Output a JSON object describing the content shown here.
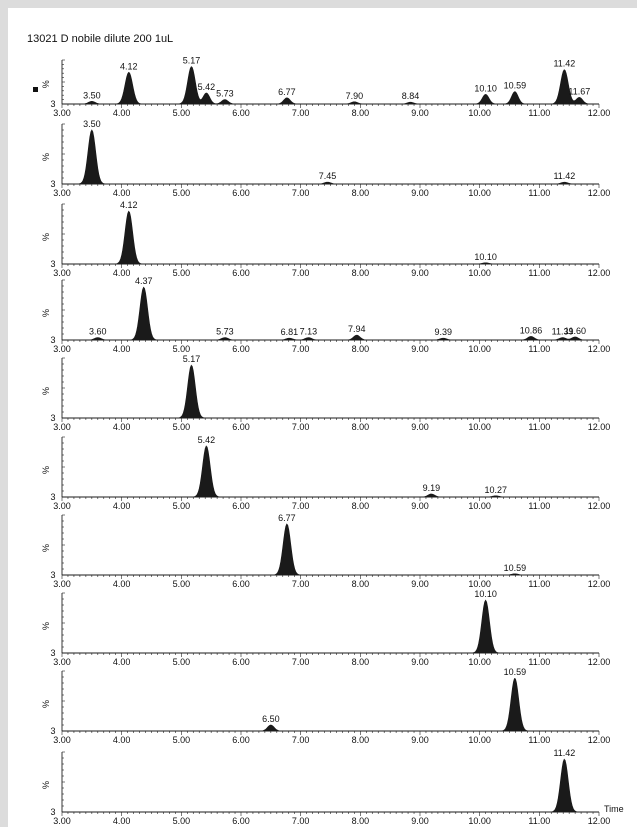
{
  "header": {
    "title": "13021 D nobile  dilute 200  1uL"
  },
  "chart_data": {
    "type": "line",
    "x_range": [
      3.0,
      12.0
    ],
    "x_ticks": [
      "3.00",
      "4.00",
      "5.00",
      "6.00",
      "7.00",
      "8.00",
      "9.00",
      "10.00",
      "11.00",
      "12.00"
    ],
    "y_axis_label": "%",
    "y_min_label": "3",
    "x_axis_label": "Time",
    "panels": [
      {
        "peaks": [
          {
            "rt": 3.5,
            "height": 0.06,
            "label": "3.50"
          },
          {
            "rt": 4.12,
            "height": 0.72,
            "label": "4.12"
          },
          {
            "rt": 5.17,
            "height": 0.85,
            "label": "5.17"
          },
          {
            "rt": 5.42,
            "height": 0.25,
            "label": "5.42"
          },
          {
            "rt": 5.73,
            "height": 0.1,
            "label": "5.73"
          },
          {
            "rt": 6.77,
            "height": 0.14,
            "label": "6.77"
          },
          {
            "rt": 7.9,
            "height": 0.05,
            "label": "7.90"
          },
          {
            "rt": 8.84,
            "height": 0.04,
            "label": "8.84"
          },
          {
            "rt": 10.1,
            "height": 0.22,
            "label": "10.10"
          },
          {
            "rt": 10.59,
            "height": 0.28,
            "label": "10.59"
          },
          {
            "rt": 11.42,
            "height": 0.78,
            "label": "11.42"
          },
          {
            "rt": 11.67,
            "height": 0.15,
            "label": "11.67"
          }
        ]
      },
      {
        "peaks": [
          {
            "rt": 3.5,
            "height": 0.9,
            "label": "3.50"
          },
          {
            "rt": 7.45,
            "height": 0.03,
            "label": "7.45"
          },
          {
            "rt": 11.42,
            "height": 0.03,
            "label": "11.42"
          }
        ]
      },
      {
        "peaks": [
          {
            "rt": 4.12,
            "height": 0.88,
            "label": "4.12"
          },
          {
            "rt": 10.1,
            "height": 0.02,
            "label": "10.10"
          }
        ]
      },
      {
        "peaks": [
          {
            "rt": 3.6,
            "height": 0.04,
            "label": "3.60"
          },
          {
            "rt": 4.37,
            "height": 0.88,
            "label": "4.37"
          },
          {
            "rt": 5.73,
            "height": 0.04,
            "label": "5.73"
          },
          {
            "rt": 6.81,
            "height": 0.03,
            "label": "6.81"
          },
          {
            "rt": 7.13,
            "height": 0.04,
            "label": "7.13"
          },
          {
            "rt": 7.94,
            "height": 0.08,
            "label": "7.94"
          },
          {
            "rt": 9.39,
            "height": 0.03,
            "label": "9.39"
          },
          {
            "rt": 10.86,
            "height": 0.06,
            "label": "10.86"
          },
          {
            "rt": 11.39,
            "height": 0.04,
            "label": "11.39"
          },
          {
            "rt": 11.6,
            "height": 0.05,
            "label": "11.60"
          }
        ]
      },
      {
        "peaks": [
          {
            "rt": 5.17,
            "height": 0.88,
            "label": "5.17"
          }
        ]
      },
      {
        "peaks": [
          {
            "rt": 5.42,
            "height": 0.85,
            "label": "5.42"
          },
          {
            "rt": 9.19,
            "height": 0.05,
            "label": "9.19"
          },
          {
            "rt": 10.27,
            "height": 0.02,
            "label": "10.27"
          }
        ]
      },
      {
        "peaks": [
          {
            "rt": 6.77,
            "height": 0.85,
            "label": "6.77"
          },
          {
            "rt": 10.59,
            "height": 0.02,
            "label": "10.59"
          }
        ]
      },
      {
        "peaks": [
          {
            "rt": 10.1,
            "height": 0.88,
            "label": "10.10"
          }
        ]
      },
      {
        "peaks": [
          {
            "rt": 6.5,
            "height": 0.1,
            "label": "6.50"
          },
          {
            "rt": 10.59,
            "height": 0.88,
            "label": "10.59"
          }
        ]
      },
      {
        "peaks": [
          {
            "rt": 11.42,
            "height": 0.88,
            "label": "11.42"
          }
        ]
      }
    ]
  }
}
